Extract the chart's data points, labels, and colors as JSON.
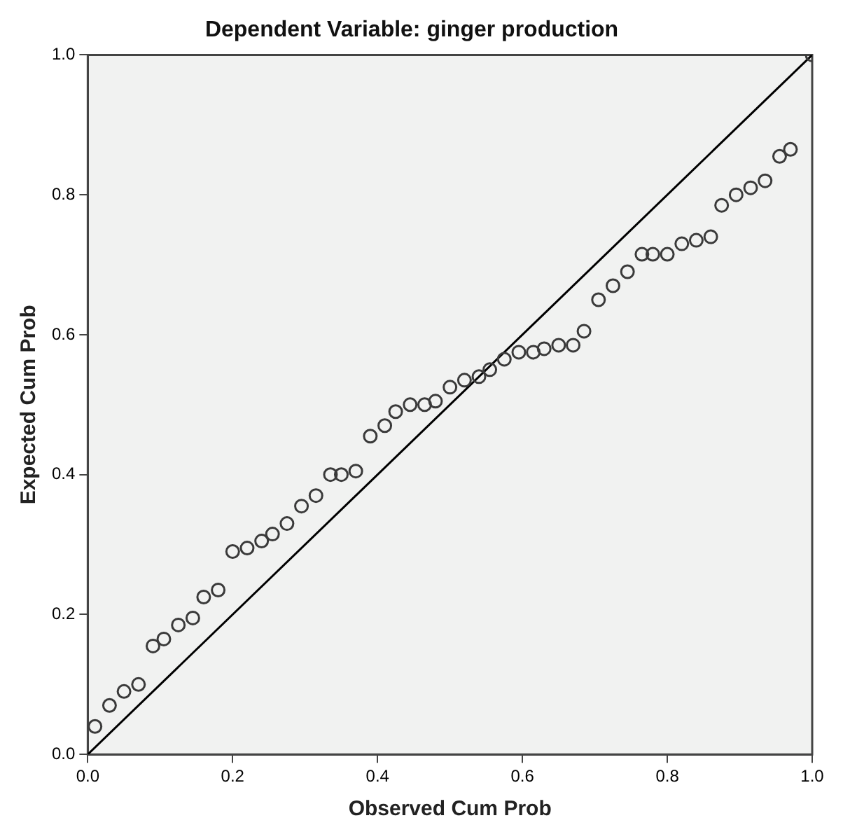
{
  "chart_data": {
    "type": "scatter",
    "title": "Dependent Variable: ginger production",
    "xlabel": "Observed Cum Prob",
    "ylabel": "Expected Cum Prob",
    "xlim": [
      0,
      1
    ],
    "ylim": [
      0,
      1
    ],
    "xticks": [
      {
        "value": 0,
        "label": "0.0"
      },
      {
        "value": 0.2,
        "label": "0.2"
      },
      {
        "value": 0.4,
        "label": "0.4"
      },
      {
        "value": 0.6,
        "label": "0.6"
      },
      {
        "value": 0.8,
        "label": "0.8"
      },
      {
        "value": 1,
        "label": "1.0"
      }
    ],
    "yticks": [
      {
        "value": 0,
        "label": "0.0"
      },
      {
        "value": 0.2,
        "label": "0.2"
      },
      {
        "value": 0.4,
        "label": "0.4"
      },
      {
        "value": 0.6,
        "label": "0.6"
      },
      {
        "value": 0.8,
        "label": "0.8"
      },
      {
        "value": 1,
        "label": "1.0"
      }
    ],
    "grid": false,
    "legend": false,
    "marker": "circle",
    "series": [
      {
        "color": "#3a3a3a",
        "x": [
          0.01,
          0.03,
          0.05,
          0.07,
          0.09,
          0.105,
          0.125,
          0.145,
          0.16,
          0.18,
          0.2,
          0.22,
          0.24,
          0.255,
          0.275,
          0.295,
          0.315,
          0.335,
          0.35,
          0.37,
          0.39,
          0.41,
          0.425,
          0.445,
          0.465,
          0.48,
          0.5,
          0.52,
          0.54,
          0.555,
          0.575,
          0.595,
          0.615,
          0.63,
          0.65,
          0.67,
          0.685,
          0.705,
          0.725,
          0.745,
          0.765,
          0.78,
          0.8,
          0.82,
          0.84,
          0.86,
          0.875,
          0.895,
          0.915,
          0.935,
          0.955,
          0.97,
          1.0
        ],
        "values": [
          0.04,
          0.07,
          0.09,
          0.1,
          0.155,
          0.165,
          0.185,
          0.195,
          0.225,
          0.235,
          0.29,
          0.295,
          0.305,
          0.315,
          0.33,
          0.355,
          0.37,
          0.4,
          0.4,
          0.405,
          0.455,
          0.47,
          0.49,
          0.5,
          0.5,
          0.505,
          0.525,
          0.535,
          0.54,
          0.55,
          0.565,
          0.575,
          0.575,
          0.58,
          0.585,
          0.585,
          0.605,
          0.65,
          0.67,
          0.69,
          0.715,
          0.715,
          0.715,
          0.73,
          0.735,
          0.74,
          0.785,
          0.8,
          0.81,
          0.82,
          0.855,
          0.865,
          1.0
        ]
      },
      {
        "type": "line",
        "color": "#000000",
        "x": [
          0,
          1
        ],
        "values": [
          0,
          1
        ],
        "line_style": "solid",
        "marker": "none"
      }
    ]
  }
}
